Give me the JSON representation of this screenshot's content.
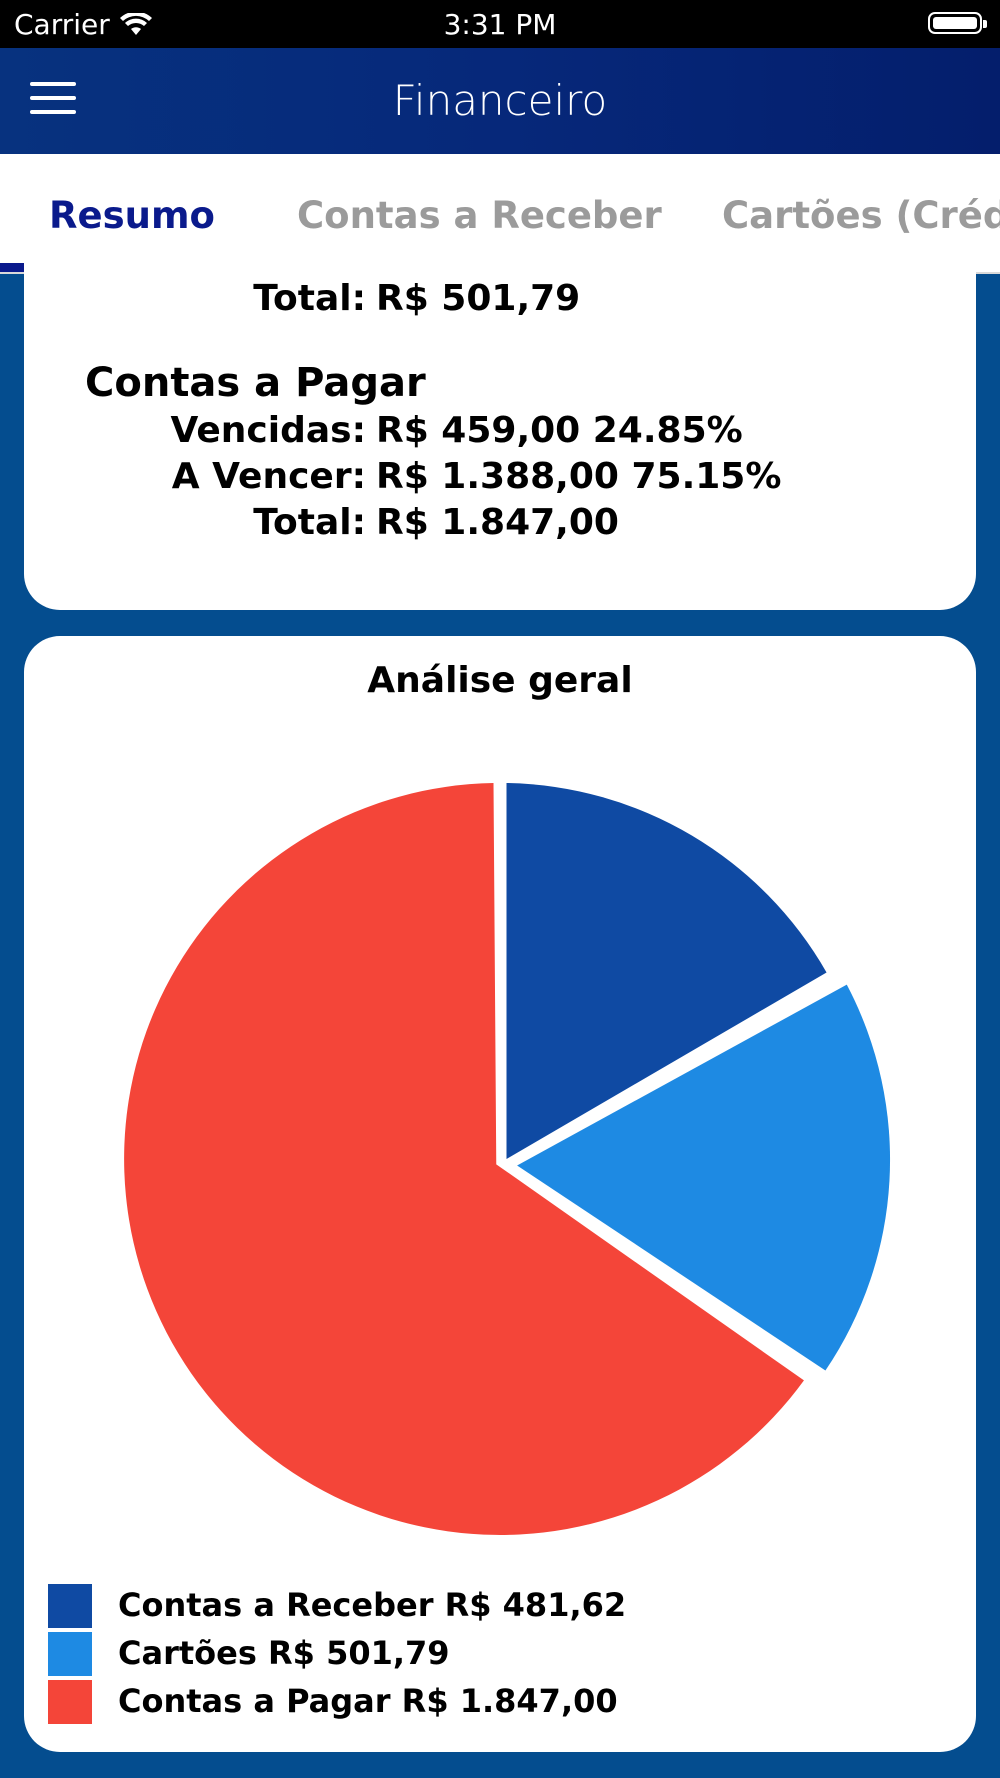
{
  "status_bar": {
    "carrier": "Carrier",
    "time": "3:31 PM"
  },
  "header": {
    "title": "Financeiro"
  },
  "tabs": [
    {
      "label": "Resumo",
      "active": true
    },
    {
      "label": "Contas a Receber",
      "active": false
    },
    {
      "label": "Cartões (Crédi",
      "active": false
    }
  ],
  "summary": {
    "previous_total": {
      "label": "Total:",
      "value": "R$ 501,79"
    },
    "contas_pagar": {
      "title": "Contas a Pagar",
      "vencidas": {
        "label": "Vencidas:",
        "value": "R$ 459,00  24.85%"
      },
      "a_vencer": {
        "label": "A Vencer:",
        "value": "R$ 1.388,00  75.15%"
      },
      "total": {
        "label": "Total:",
        "value": "R$ 1.847,00"
      }
    }
  },
  "chart_data": {
    "type": "pie",
    "title": "Análise geral",
    "categories": [
      "Contas a Receber",
      "Cartões",
      "Contas a Pagar"
    ],
    "values": [
      481.62,
      501.79,
      1847.0
    ],
    "value_labels": [
      "R$ 481,62",
      "R$ 501,79",
      "R$ 1.847,00"
    ],
    "colors": [
      "#0f4aa3",
      "#1e8ae3",
      "#f44539"
    ],
    "legend_placement": "bottom-left"
  },
  "colors": {
    "navbar": "#06287a",
    "background": "#044d8f",
    "tab_active": "#0a1a8c",
    "tab_inactive": "#9b9b9b"
  },
  "icons": {
    "menu": "hamburger-menu-icon",
    "wifi": "wifi-icon",
    "battery": "battery-icon"
  }
}
